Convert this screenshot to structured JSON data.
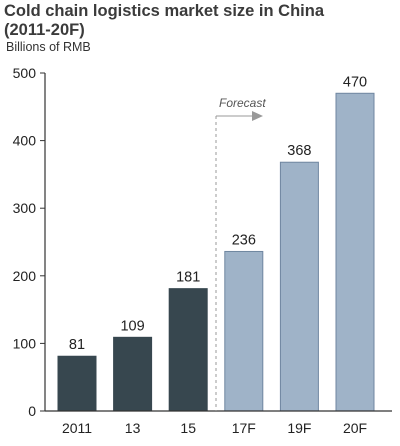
{
  "chart_data": {
    "type": "bar",
    "title_line1": "Cold chain logistics market size in China",
    "title_line2": "(2011-20F)",
    "ylabel": "Billions of RMB",
    "categories": [
      "2011",
      "13",
      "15",
      "17F",
      "19F",
      "20F"
    ],
    "values": [
      81,
      109,
      181,
      236,
      368,
      470
    ],
    "forecast": [
      false,
      false,
      false,
      true,
      true,
      true
    ],
    "ylim": [
      0,
      500
    ],
    "yticks": [
      "0",
      "100",
      "200",
      "300",
      "400",
      "500"
    ],
    "annotation": "Forecast",
    "grid": false,
    "colors": {
      "actual": "#37474f",
      "forecast": "#9fb3c8",
      "forecast_border": "#6f86a0"
    }
  }
}
